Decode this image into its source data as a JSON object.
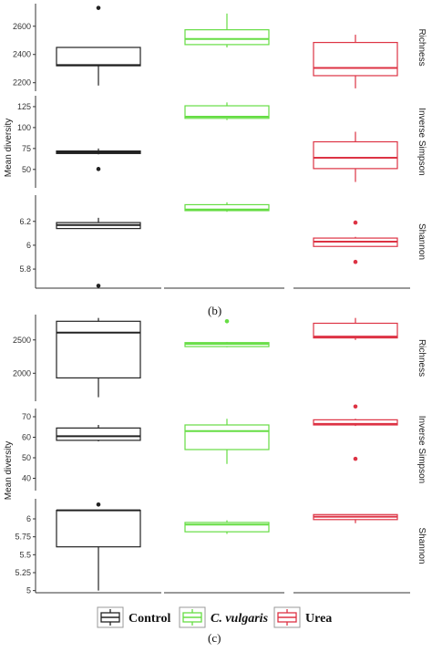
{
  "figure": {
    "caption_b": "(b)",
    "caption_c": "(c)",
    "legend": [
      {
        "label": "Control",
        "color": "#222222",
        "italic": false
      },
      {
        "label": "C. vulgaris",
        "color": "#66dd44",
        "italic": true
      },
      {
        "label": "Urea",
        "color": "#dd3344",
        "italic": false
      }
    ]
  },
  "chart_data": [
    {
      "type": "box",
      "panel": "(b)",
      "ylabel": "Mean diversity",
      "categories": [
        "Control",
        "C. vulgaris",
        "Urea"
      ],
      "colors": [
        "#222222",
        "#66dd44",
        "#dd3344"
      ],
      "facets": [
        {
          "name": "Richness",
          "ylim": [
            2140,
            2760
          ],
          "ticks": [
            2200,
            2400,
            2600
          ],
          "boxes": [
            {
              "min": 2180,
              "q1": 2320,
              "median": 2325,
              "q3": 2450,
              "max": 2450,
              "outliers": [
                2730
              ]
            },
            {
              "min": 2450,
              "q1": 2470,
              "median": 2510,
              "q3": 2575,
              "max": 2690,
              "outliers": []
            },
            {
              "min": 2160,
              "q1": 2250,
              "median": 2305,
              "q3": 2485,
              "max": 2540,
              "outliers": []
            }
          ]
        },
        {
          "name": "Inverse Simpson",
          "ylim": [
            28,
            138
          ],
          "ticks": [
            50,
            75,
            100,
            125
          ],
          "boxes": [
            {
              "min": 68,
              "q1": 69,
              "median": 70.5,
              "q3": 72,
              "max": 75,
              "outliers": [
                50.5
              ]
            },
            {
              "min": 109,
              "q1": 111,
              "median": 113,
              "q3": 126,
              "max": 130,
              "outliers": []
            },
            {
              "min": 35,
              "q1": 51,
              "median": 64,
              "q3": 83,
              "max": 95,
              "outliers": []
            }
          ]
        },
        {
          "name": "Shannon",
          "ylim": [
            5.64,
            6.42
          ],
          "ticks": [
            5.8,
            6.0,
            6.2
          ],
          "boxes": [
            {
              "min": 6.14,
              "q1": 6.14,
              "median": 6.17,
              "q3": 6.19,
              "max": 6.23,
              "outliers": [
                5.66
              ]
            },
            {
              "min": 6.28,
              "q1": 6.29,
              "median": 6.3,
              "q3": 6.34,
              "max": 6.36,
              "outliers": []
            },
            {
              "min": 5.99,
              "q1": 5.99,
              "median": 6.03,
              "q3": 6.06,
              "max": 6.07,
              "outliers": [
                6.19,
                5.86
              ]
            }
          ]
        }
      ]
    },
    {
      "type": "box",
      "panel": "(c)",
      "ylabel": "Mean diversity",
      "categories": [
        "Control",
        "C. vulgaris",
        "Urea"
      ],
      "colors": [
        "#222222",
        "#66dd44",
        "#dd3344"
      ],
      "facets": [
        {
          "name": "Richness",
          "ylim": [
            1580,
            2880
          ],
          "ticks": [
            2000,
            2500
          ],
          "boxes": [
            {
              "min": 1640,
              "q1": 1930,
              "median": 2610,
              "q3": 2780,
              "max": 2830,
              "outliers": []
            },
            {
              "min": 2390,
              "q1": 2400,
              "median": 2440,
              "q3": 2460,
              "max": 2470,
              "outliers": [
                2780
              ]
            },
            {
              "min": 2500,
              "q1": 2530,
              "median": 2550,
              "q3": 2750,
              "max": 2830,
              "outliers": []
            }
          ]
        },
        {
          "name": "Inverse Simpson",
          "ylim": [
            34,
            74
          ],
          "ticks": [
            40,
            50,
            60,
            70
          ],
          "boxes": [
            {
              "min": 58,
              "q1": 58.5,
              "median": 60.5,
              "q3": 64.5,
              "max": 66,
              "outliers": []
            },
            {
              "min": 47,
              "q1": 54,
              "median": 63,
              "q3": 66,
              "max": 69,
              "outliers": []
            },
            {
              "min": 65.5,
              "q1": 66,
              "median": 66.5,
              "q3": 68.5,
              "max": 69,
              "outliers": [
                75,
                49.5
              ]
            }
          ]
        },
        {
          "name": "Shannon",
          "ylim": [
            4.97,
            6.28
          ],
          "ticks": [
            5.0,
            5.25,
            5.5,
            5.75,
            6.0
          ],
          "boxes": [
            {
              "min": 5.0,
              "q1": 5.61,
              "median": 6.12,
              "q3": 6.12,
              "max": 6.12,
              "outliers": [
                6.2
              ]
            },
            {
              "min": 5.79,
              "q1": 5.82,
              "median": 5.92,
              "q3": 5.95,
              "max": 5.98,
              "outliers": []
            },
            {
              "min": 5.94,
              "q1": 5.99,
              "median": 6.03,
              "q3": 6.06,
              "max": 6.06,
              "outliers": []
            }
          ]
        }
      ]
    }
  ]
}
